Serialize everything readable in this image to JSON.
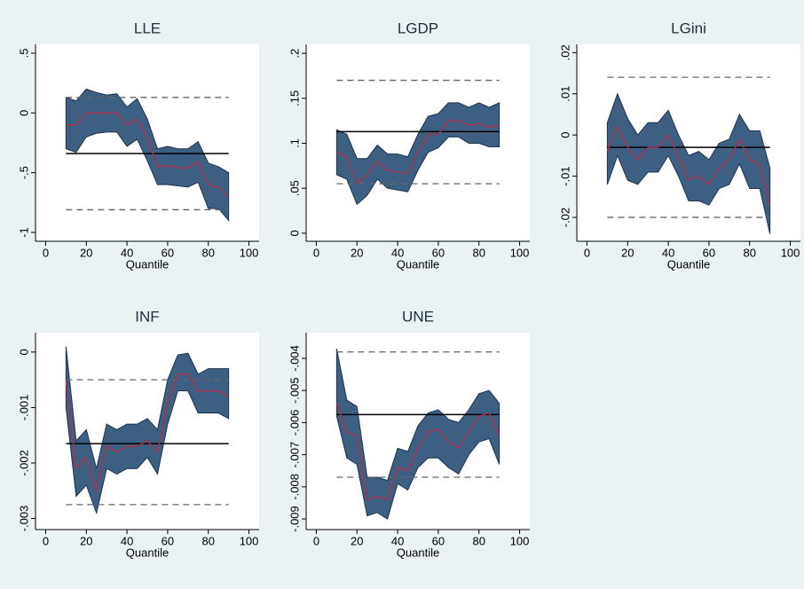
{
  "chart_data": [
    {
      "type": "band",
      "title": "LLE",
      "x_label": "Quantile",
      "x": [
        10,
        15,
        20,
        25,
        30,
        35,
        40,
        45,
        50,
        55,
        60,
        65,
        70,
        75,
        80,
        85,
        90
      ],
      "values": [
        -0.1,
        -0.1,
        0.0,
        0.0,
        0.0,
        0.0,
        -0.1,
        -0.05,
        -0.2,
        -0.45,
        -0.44,
        -0.46,
        -0.46,
        -0.41,
        -0.6,
        -0.62,
        -0.7
      ],
      "upper": [
        0.13,
        0.1,
        0.2,
        0.17,
        0.15,
        0.16,
        0.05,
        0.12,
        -0.05,
        -0.3,
        -0.28,
        -0.3,
        -0.3,
        -0.24,
        -0.42,
        -0.45,
        -0.5
      ],
      "lower": [
        -0.3,
        -0.33,
        -0.2,
        -0.17,
        -0.16,
        -0.16,
        -0.28,
        -0.22,
        -0.4,
        -0.6,
        -0.6,
        -0.61,
        -0.62,
        -0.58,
        -0.8,
        -0.8,
        -0.9
      ],
      "hlines": [
        -0.34
      ],
      "hlines_dashed": [
        0.13,
        -0.81
      ],
      "xlim": [
        -5,
        105
      ],
      "xticks": [
        0,
        20,
        40,
        60,
        80,
        100
      ],
      "ylim": [
        -1.074,
        0.574
      ],
      "yticks": [
        {
          "value": 0.5,
          "label": ".5"
        },
        0,
        {
          "value": -0.5,
          "label": "-.5"
        },
        -1
      ]
    },
    {
      "type": "band",
      "title": "LGDP",
      "x_label": "Quantile",
      "x": [
        10,
        15,
        20,
        25,
        30,
        35,
        40,
        45,
        50,
        55,
        60,
        65,
        70,
        75,
        80,
        85,
        90
      ],
      "values": [
        0.09,
        0.085,
        0.055,
        0.065,
        0.08,
        0.07,
        0.068,
        0.066,
        0.09,
        0.11,
        0.11,
        0.125,
        0.125,
        0.12,
        0.122,
        0.118,
        0.12
      ],
      "upper": [
        0.115,
        0.11,
        0.083,
        0.083,
        0.098,
        0.088,
        0.088,
        0.085,
        0.11,
        0.13,
        0.133,
        0.145,
        0.145,
        0.14,
        0.145,
        0.14,
        0.145
      ],
      "lower": [
        0.065,
        0.06,
        0.032,
        0.042,
        0.06,
        0.05,
        0.048,
        0.046,
        0.07,
        0.09,
        0.095,
        0.107,
        0.107,
        0.1,
        0.1,
        0.096,
        0.096
      ],
      "hlines": [
        0.113
      ],
      "hlines_dashed": [
        0.17,
        0.055
      ],
      "xlim": [
        -5,
        105
      ],
      "xticks": [
        0,
        20,
        40,
        60,
        80,
        100
      ],
      "ylim": [
        -0.009,
        0.21
      ],
      "yticks": [
        {
          "value": 0.2,
          "label": ".2"
        },
        {
          "value": 0.15,
          "label": ".15"
        },
        {
          "value": 0.1,
          "label": ".1"
        },
        {
          "value": 0.05,
          "label": ".05"
        },
        0
      ]
    },
    {
      "type": "band",
      "title": "LGini",
      "x_label": "Quantile",
      "x": [
        10,
        15,
        20,
        25,
        30,
        35,
        40,
        45,
        50,
        55,
        60,
        65,
        70,
        75,
        80,
        85,
        90
      ],
      "values": [
        -0.004,
        0.002,
        -0.003,
        -0.006,
        -0.003,
        -0.003,
        0.0,
        -0.005,
        -0.011,
        -0.01,
        -0.012,
        -0.008,
        -0.006,
        -0.001,
        -0.006,
        -0.007,
        -0.017
      ],
      "upper": [
        0.003,
        0.01,
        0.004,
        0.0,
        0.003,
        0.003,
        0.006,
        0.0,
        -0.005,
        -0.004,
        -0.006,
        -0.002,
        -0.001,
        0.005,
        0.001,
        0.001,
        -0.008
      ],
      "lower": [
        -0.012,
        -0.005,
        -0.011,
        -0.012,
        -0.009,
        -0.009,
        -0.005,
        -0.01,
        -0.016,
        -0.016,
        -0.017,
        -0.013,
        -0.012,
        -0.007,
        -0.013,
        -0.013,
        -0.024
      ],
      "hlines": [
        -0.003
      ],
      "hlines_dashed": [
        0.014,
        -0.02
      ],
      "xlim": [
        -5,
        105
      ],
      "xticks": [
        0,
        20,
        40,
        60,
        80,
        100
      ],
      "ylim": [
        -0.0258,
        0.022
      ],
      "yticks": [
        {
          "value": 0.02,
          "label": ".02"
        },
        {
          "value": 0.01,
          "label": ".01"
        },
        0,
        {
          "value": -0.01,
          "label": "-.01"
        },
        {
          "value": -0.02,
          "label": "-.02"
        }
      ]
    },
    {
      "type": "band",
      "title": "INF",
      "x_label": "Quantile",
      "x": [
        10,
        15,
        20,
        25,
        30,
        35,
        40,
        45,
        50,
        55,
        60,
        65,
        70,
        75,
        80,
        85,
        90
      ],
      "values": [
        -0.0005,
        -0.0021,
        -0.0019,
        -0.0025,
        -0.0017,
        -0.0018,
        -0.0017,
        -0.0017,
        -0.0016,
        -0.0018,
        -0.0009,
        -0.0004,
        -0.0004,
        -0.0007,
        -0.0007,
        -0.0007,
        -0.0008
      ],
      "upper": [
        0.0001,
        -0.0016,
        -0.0014,
        -0.0021,
        -0.0013,
        -0.0014,
        -0.0013,
        -0.0013,
        -0.0012,
        -0.0014,
        -0.0005,
        -5e-05,
        -2e-05,
        -0.0004,
        -0.0003,
        -0.0003,
        -0.0003
      ],
      "lower": [
        -0.001,
        -0.0026,
        -0.0024,
        -0.0029,
        -0.0021,
        -0.0022,
        -0.0021,
        -0.0021,
        -0.0019,
        -0.0022,
        -0.0013,
        -0.0007,
        -0.0007,
        -0.0011,
        -0.0011,
        -0.0011,
        -0.0012
      ],
      "hlines": [
        -0.00165
      ],
      "hlines_dashed": [
        -0.0005,
        -0.00275
      ],
      "xlim": [
        -5,
        105
      ],
      "xticks": [
        0,
        20,
        40,
        60,
        80,
        100
      ],
      "ylim": [
        -0.0032,
        0.00035
      ],
      "yticks": [
        0,
        {
          "value": -0.001,
          "label": "-.001"
        },
        {
          "value": -0.002,
          "label": "-.002"
        },
        {
          "value": -0.003,
          "label": "-.003"
        }
      ]
    },
    {
      "type": "band",
      "title": "UNE",
      "x_label": "Quantile",
      "x": [
        10,
        15,
        20,
        25,
        30,
        35,
        40,
        45,
        50,
        55,
        60,
        65,
        70,
        75,
        80,
        85,
        90
      ],
      "values": [
        -0.0054,
        -0.0063,
        -0.0064,
        -0.0084,
        -0.0083,
        -0.0084,
        -0.0074,
        -0.0075,
        -0.0068,
        -0.0063,
        -0.0062,
        -0.0066,
        -0.0068,
        -0.0063,
        -0.0058,
        -0.0057,
        -0.0064
      ],
      "upper": [
        -0.0037,
        -0.0053,
        -0.0055,
        -0.0077,
        -0.0077,
        -0.0078,
        -0.0068,
        -0.0069,
        -0.0061,
        -0.0057,
        -0.0056,
        -0.0059,
        -0.006,
        -0.0056,
        -0.0051,
        -0.005,
        -0.0054
      ],
      "lower": [
        -0.0058,
        -0.0071,
        -0.0073,
        -0.0089,
        -0.0088,
        -0.009,
        -0.0079,
        -0.0081,
        -0.0074,
        -0.0071,
        -0.0071,
        -0.0074,
        -0.0076,
        -0.007,
        -0.0066,
        -0.0065,
        -0.0073
      ],
      "hlines": [
        -0.00575
      ],
      "hlines_dashed": [
        -0.0038,
        -0.0077
      ],
      "xlim": [
        -5,
        105
      ],
      "xticks": [
        0,
        20,
        40,
        60,
        80,
        100
      ],
      "ylim": [
        -0.00933,
        -0.0032
      ],
      "yticks": [
        {
          "value": -0.004,
          "label": "-.004"
        },
        {
          "value": -0.005,
          "label": "-.005"
        },
        {
          "value": -0.006,
          "label": "-.006"
        },
        {
          "value": -0.007,
          "label": "-.007"
        },
        {
          "value": -0.008,
          "label": "-.008"
        },
        {
          "value": -0.009,
          "label": "-.009"
        }
      ]
    }
  ]
}
